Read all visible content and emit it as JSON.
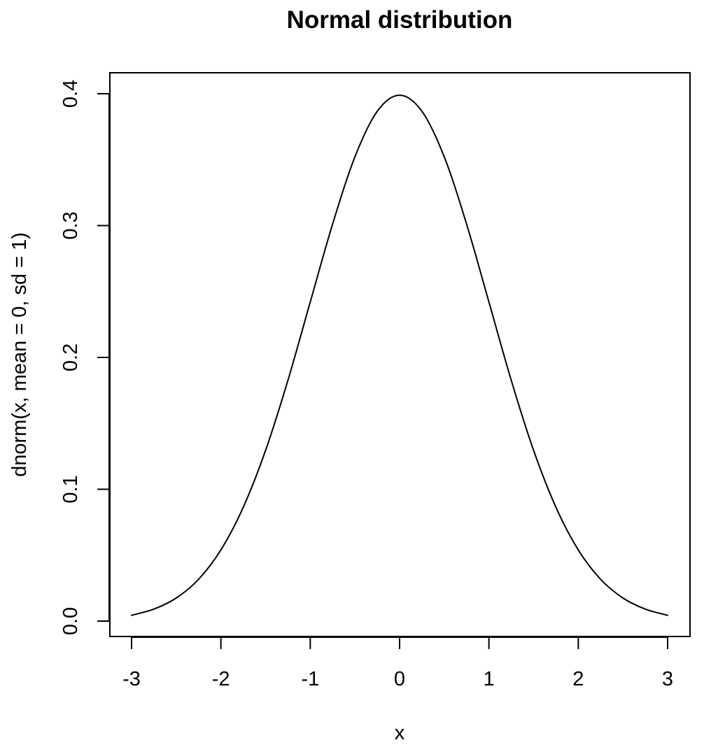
{
  "chart_data": {
    "type": "line",
    "title": "Normal distribution",
    "xlabel": "x",
    "ylabel": "dnorm(x, mean = 0, sd = 1)",
    "xlim": [
      -3,
      3
    ],
    "ylim": [
      0,
      0.4
    ],
    "x_ticks": [
      -3,
      -2,
      -1,
      0,
      1,
      2,
      3
    ],
    "x_tick_labels": [
      "-3",
      "-2",
      "-1",
      "0",
      "1",
      "2",
      "3"
    ],
    "y_ticks": [
      0,
      0.1,
      0.2,
      0.3,
      0.4
    ],
    "y_tick_labels": [
      "0.0",
      "0.1",
      "0.2",
      "0.3",
      "0.4"
    ],
    "grid": false,
    "legend": "none",
    "line_color": "#000000",
    "series": [
      {
        "x": [
          -3,
          -2.75,
          -2.5,
          -2.25,
          -2,
          -1.75,
          -1.5,
          -1.25,
          -1,
          -0.75,
          -0.5,
          -0.25,
          0,
          0.25,
          0.5,
          0.75,
          1,
          1.25,
          1.5,
          1.75,
          2,
          2.25,
          2.5,
          2.75,
          3
        ],
        "y": [
          0.0044,
          0.0091,
          0.0175,
          0.0317,
          0.054,
          0.0863,
          0.1295,
          0.1826,
          0.242,
          0.3011,
          0.3521,
          0.3867,
          0.3989,
          0.3867,
          0.3521,
          0.3011,
          0.242,
          0.1826,
          0.1295,
          0.0863,
          0.054,
          0.0317,
          0.0175,
          0.0091,
          0.0044
        ]
      }
    ]
  }
}
